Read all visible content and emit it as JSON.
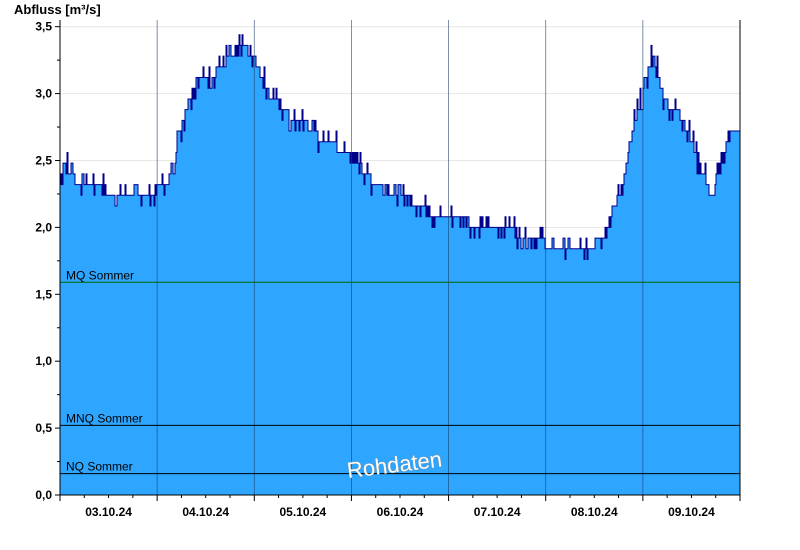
{
  "chart_data": {
    "type": "area",
    "ylabel": "Abfluss [m³/s]",
    "ylim": [
      0,
      3.55
    ],
    "y_ticks": [
      "0,0",
      "0,5",
      "1,0",
      "1,5",
      "2,0",
      "2,5",
      "3,0",
      "3,5"
    ],
    "x_categories": [
      "03.10.24",
      "04.10.24",
      "05.10.24",
      "06.10.24",
      "07.10.24",
      "08.10.24",
      "09.10.24"
    ],
    "x_range_days": [
      0,
      7
    ],
    "grid": true,
    "series": [
      {
        "color": "#2ea6ff",
        "line_color": "#00008b",
        "x_days": [
          0.0,
          0.03,
          0.06,
          0.09,
          0.12,
          0.15,
          0.18,
          0.21,
          0.25,
          0.3,
          0.35,
          0.4,
          0.45,
          0.5,
          0.6,
          0.7,
          0.8,
          0.9,
          1.0,
          1.05,
          1.1,
          1.13,
          1.15,
          1.18,
          1.2,
          1.25,
          1.3,
          1.35,
          1.4,
          1.45,
          1.5,
          1.55,
          1.6,
          1.7,
          1.8,
          1.9,
          2.0,
          2.05,
          2.1,
          2.15,
          2.2,
          2.3,
          2.4,
          2.5,
          2.6,
          2.7,
          2.8,
          2.9,
          3.0,
          3.1,
          3.2,
          3.3,
          3.4,
          3.5,
          3.6,
          3.7,
          3.8,
          3.9,
          4.0,
          4.1,
          4.2,
          4.3,
          4.4,
          4.5,
          4.6,
          4.7,
          4.8,
          4.9,
          5.0,
          5.1,
          5.2,
          5.3,
          5.4,
          5.5,
          5.6,
          5.7,
          5.8,
          5.9,
          6.0,
          6.05,
          6.1,
          6.15,
          6.2,
          6.25,
          6.3,
          6.35,
          6.4,
          6.45,
          6.5,
          6.55,
          6.6,
          6.65,
          6.7,
          6.75,
          6.8,
          6.85,
          6.9,
          6.95,
          7.0
        ],
        "y": [
          2.36,
          2.45,
          2.52,
          2.36,
          2.52,
          2.36,
          2.28,
          2.36,
          2.28,
          2.36,
          2.28,
          2.36,
          2.28,
          2.2,
          2.2,
          2.2,
          2.2,
          2.2,
          2.28,
          2.36,
          2.36,
          2.36,
          2.44,
          2.52,
          2.6,
          2.76,
          2.88,
          3.0,
          3.08,
          3.08,
          3.16,
          3.08,
          3.16,
          3.24,
          3.3,
          3.36,
          3.24,
          3.16,
          3.08,
          3.0,
          2.96,
          2.88,
          2.8,
          2.8,
          2.72,
          2.64,
          2.64,
          2.56,
          2.52,
          2.44,
          2.36,
          2.36,
          2.28,
          2.28,
          2.2,
          2.12,
          2.12,
          2.04,
          2.04,
          2.04,
          2.04,
          2.0,
          1.96,
          1.96,
          1.96,
          1.96,
          1.92,
          1.92,
          1.88,
          1.84,
          1.88,
          1.88,
          1.88,
          1.88,
          1.96,
          2.12,
          2.36,
          2.76,
          3.0,
          3.16,
          3.3,
          3.16,
          3.0,
          2.92,
          2.88,
          2.88,
          2.8,
          2.72,
          2.64,
          2.52,
          2.44,
          2.36,
          2.2,
          2.36,
          2.44,
          2.6,
          2.7,
          2.7,
          2.7
        ]
      }
    ],
    "reference_lines": [
      {
        "label": "MQ Sommer",
        "value": 1.59,
        "color": "#006400"
      },
      {
        "label": "MNQ Sommer",
        "value": 0.52,
        "color": "#000000"
      },
      {
        "label": "NQ Sommer",
        "value": 0.16,
        "color": "#000000"
      }
    ],
    "watermark": "Rohdaten"
  }
}
